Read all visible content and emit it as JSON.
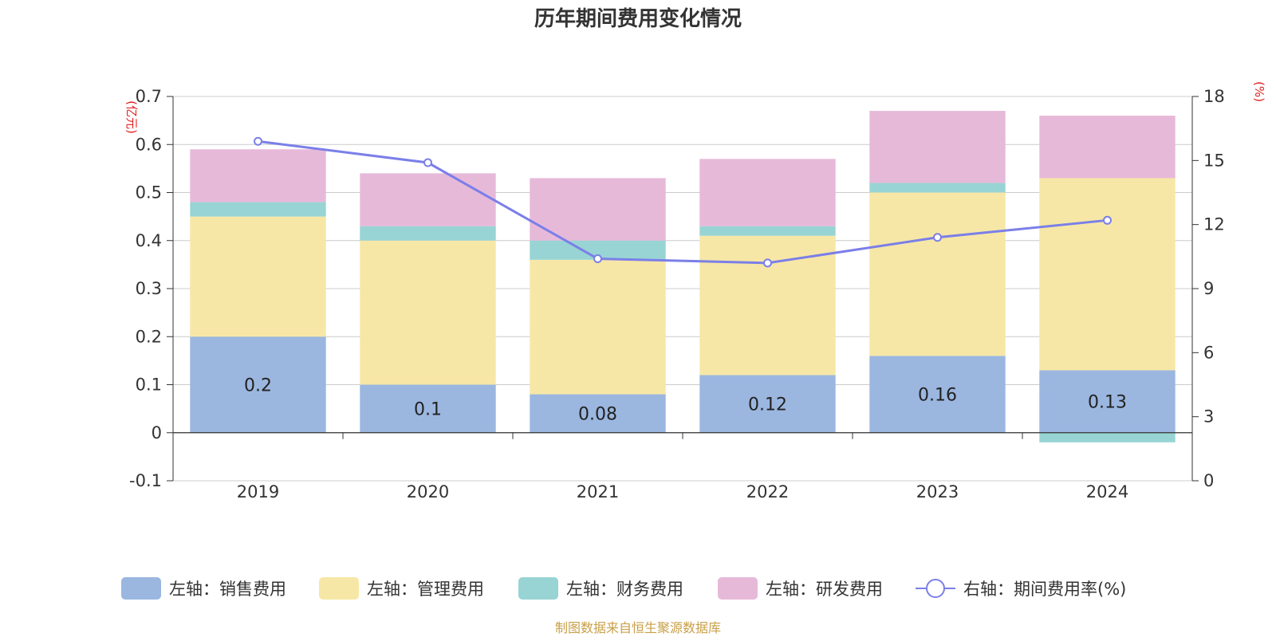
{
  "chart_data": {
    "type": "bar",
    "title": "历年期间费用变化情况",
    "categories": [
      "2019",
      "2020",
      "2021",
      "2022",
      "2023",
      "2024"
    ],
    "y_left": {
      "unit": "(亿元)",
      "ylim": [
        -0.1,
        0.7
      ],
      "ticks": [
        "0.7",
        "0.6",
        "0.5",
        "0.4",
        "0.3",
        "0.2",
        "0.1",
        "0",
        "-0.1"
      ],
      "tick_values": [
        0.7,
        0.6,
        0.5,
        0.4,
        0.3,
        0.2,
        0.1,
        0,
        -0.1
      ]
    },
    "y_right": {
      "unit": "(%)",
      "ylim": [
        0,
        18
      ],
      "ticks": [
        "18",
        "15",
        "12",
        "9",
        "6",
        "3",
        "0"
      ],
      "tick_values": [
        18,
        15,
        12,
        9,
        6,
        3,
        0
      ]
    },
    "stacked": true,
    "series": [
      {
        "name": "左轴：销售费用",
        "type": "bar",
        "axis": "left",
        "color": "#9bb7e0",
        "values": [
          0.2,
          0.1,
          0.08,
          0.12,
          0.16,
          0.13
        ],
        "labels": [
          "0.2",
          "0.1",
          "0.08",
          "0.12",
          "0.16",
          "0.13"
        ]
      },
      {
        "name": "左轴：管理费用",
        "type": "bar",
        "axis": "left",
        "color": "#f7e7a6",
        "values": [
          0.25,
          0.3,
          0.28,
          0.29,
          0.34,
          0.4
        ]
      },
      {
        "name": "左轴：财务费用",
        "type": "bar",
        "axis": "left",
        "color": "#98d4d4",
        "values": [
          0.03,
          0.03,
          0.04,
          0.02,
          0.02,
          -0.02
        ]
      },
      {
        "name": "左轴：研发费用",
        "type": "bar",
        "axis": "left",
        "color": "#e7b9d9",
        "values": [
          0.11,
          0.11,
          0.13,
          0.14,
          0.15,
          0.13
        ]
      },
      {
        "name": "右轴：期间费用率(%)",
        "type": "line",
        "axis": "right",
        "color": "#7b7fe8",
        "values": [
          15.9,
          14.9,
          10.4,
          10.2,
          11.4,
          12.2
        ]
      }
    ],
    "grid": true,
    "legend_position": "bottom",
    "source": "制图数据来自恒生聚源数据库",
    "unit_color": "#e02020"
  }
}
